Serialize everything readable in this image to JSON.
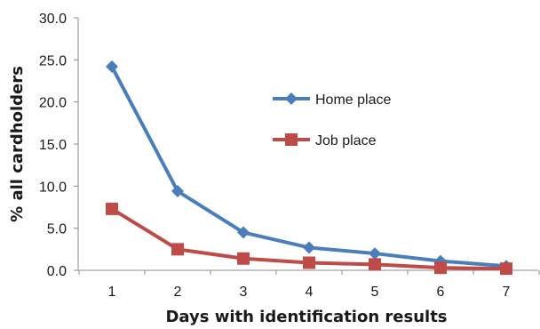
{
  "chart_data": {
    "type": "line",
    "categories": [
      "1",
      "2",
      "3",
      "4",
      "5",
      "6",
      "7"
    ],
    "series": [
      {
        "name": "Home place",
        "values": [
          24.2,
          9.4,
          4.5,
          2.7,
          2.0,
          1.1,
          0.5
        ],
        "color": "#4a7ebb",
        "marker": "diamond"
      },
      {
        "name": "Job place",
        "values": [
          7.3,
          2.5,
          1.4,
          0.9,
          0.7,
          0.3,
          0.2
        ],
        "color": "#be4b48",
        "marker": "square"
      }
    ],
    "title": "",
    "xlabel": "Days with identification results",
    "ylabel": "% all cardholders",
    "ylim": [
      0,
      30
    ],
    "yticks": [
      "0.0",
      "5.0",
      "10.0",
      "15.0",
      "20.0",
      "25.0",
      "30.0"
    ],
    "grid": false,
    "legend_position": "center-right"
  }
}
